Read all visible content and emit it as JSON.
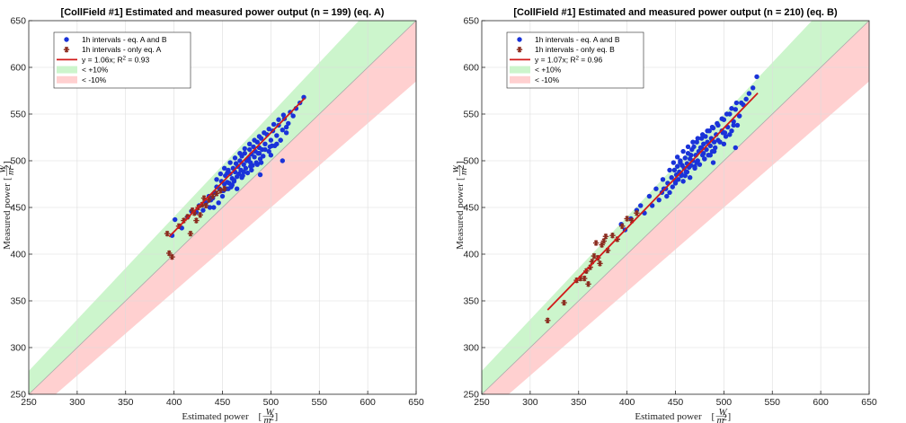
{
  "chart_data": [
    {
      "type": "scatter",
      "title": "[CollField #1] Estimated and measured power output (n = 199) (eq. A)",
      "xlabel": "Estimated power",
      "ylabel": "Measured power",
      "unit_num": "W",
      "unit_den": "m",
      "unit_exp": "2",
      "xlim": [
        250,
        650
      ],
      "ylim": [
        250,
        650
      ],
      "xticks": [
        250,
        300,
        350,
        400,
        450,
        500,
        550,
        600,
        650
      ],
      "yticks": [
        250,
        300,
        350,
        400,
        450,
        500,
        550,
        600,
        650
      ],
      "grid": true,
      "legend_position": "top-left",
      "band_upper_pct": 10,
      "band_lower_pct": -10,
      "colors": {
        "both": "#1a33d9",
        "only": "#8b2b1e",
        "fit": "#d11a1a",
        "band_upper": "#ccf5cc",
        "band_lower": "#ffd0d0",
        "identity": "#aaaaaa"
      },
      "legend": [
        {
          "key": "both",
          "marker": "dot",
          "label_parts": [
            "1h intervals - eq. A and B"
          ]
        },
        {
          "key": "only",
          "marker": "star",
          "label_parts": [
            "1h intervals - only eq. A"
          ]
        },
        {
          "key": "fit",
          "marker": "line",
          "label_parts": [
            "y = 1.06x; R",
            "2",
            " = 0.93"
          ]
        },
        {
          "key": "band_upper",
          "marker": "patch",
          "label_parts": [
            "< +10%"
          ]
        },
        {
          "key": "band_lower",
          "marker": "patch",
          "label_parts": [
            "< -10%"
          ]
        }
      ],
      "fit": {
        "slope": 1.06,
        "x_range": [
          395,
          535
        ]
      },
      "series": [
        {
          "key": "both",
          "x": [
            398,
            401,
            408,
            414,
            418,
            423,
            426,
            430,
            433,
            436,
            437,
            440,
            442,
            444,
            446,
            447,
            449,
            450,
            451,
            452,
            453,
            454,
            455,
            456,
            457,
            458,
            459,
            460,
            461,
            462,
            463,
            464,
            465,
            466,
            467,
            468,
            469,
            470,
            471,
            472,
            473,
            474,
            475,
            476,
            477,
            478,
            479,
            480,
            481,
            482,
            483,
            484,
            485,
            486,
            487,
            488,
            489,
            490,
            491,
            492,
            494,
            496,
            498,
            500,
            502,
            504,
            506,
            508,
            510,
            512,
            514,
            516,
            518,
            520,
            523,
            526,
            530,
            534,
            448,
            452,
            458,
            463,
            468,
            473,
            478,
            483,
            488,
            493,
            498,
            503,
            508,
            513,
            444,
            455,
            466,
            477,
            488,
            499,
            510,
            460,
            470,
            480,
            490,
            500,
            450,
            472,
            494,
            516,
            438,
            462,
            486,
            506,
            441,
            465,
            489,
            512,
            456,
            479,
            501
          ],
          "y": [
            420,
            437,
            428,
            440,
            446,
            445,
            452,
            447,
            455,
            462,
            450,
            460,
            466,
            472,
            455,
            470,
            478,
            462,
            468,
            475,
            484,
            470,
            477,
            490,
            476,
            486,
            472,
            481,
            492,
            479,
            488,
            497,
            483,
            494,
            486,
            500,
            490,
            505,
            484,
            496,
            508,
            492,
            500,
            487,
            503,
            512,
            498,
            507,
            495,
            515,
            504,
            510,
            498,
            520,
            508,
            514,
            502,
            524,
            512,
            505,
            518,
            528,
            510,
            522,
            532,
            516,
            527,
            538,
            522,
            533,
            545,
            530,
            540,
            552,
            548,
            556,
            562,
            568,
            486,
            492,
            498,
            503,
            508,
            513,
            518,
            522,
            526,
            530,
            534,
            539,
            544,
            549,
            480,
            487,
            494,
            501,
            508,
            515,
            522,
            474,
            482,
            490,
            498,
            506,
            468,
            488,
            512,
            536,
            458,
            478,
            496,
            518,
            450,
            470,
            485,
            500,
            470,
            494,
            516
          ]
        },
        {
          "key": "only",
          "x": [
            393,
            395,
            398,
            405,
            410,
            414,
            417,
            419,
            421,
            423,
            425,
            427,
            429,
            431,
            433,
            436,
            440,
            444,
            448,
            452
          ],
          "y": [
            422,
            401,
            397,
            430,
            436,
            440,
            422,
            447,
            444,
            436,
            450,
            442,
            453,
            460,
            452,
            458,
            462,
            465,
            468,
            470
          ]
        }
      ]
    },
    {
      "type": "scatter",
      "title": "[CollField #1] Estimated and measured power output (n = 210) (eq. B)",
      "xlabel": "Estimated power",
      "ylabel": "Measured power",
      "unit_num": "W",
      "unit_den": "m",
      "unit_exp": "2",
      "xlim": [
        250,
        650
      ],
      "ylim": [
        250,
        650
      ],
      "xticks": [
        250,
        300,
        350,
        400,
        450,
        500,
        550,
        600,
        650
      ],
      "yticks": [
        250,
        300,
        350,
        400,
        450,
        500,
        550,
        600,
        650
      ],
      "grid": true,
      "legend_position": "top-left",
      "band_upper_pct": 10,
      "band_lower_pct": -10,
      "colors": {
        "both": "#1a33d9",
        "only": "#8b2b1e",
        "fit": "#d11a1a",
        "band_upper": "#ccf5cc",
        "band_lower": "#ffd0d0",
        "identity": "#aaaaaa"
      },
      "legend": [
        {
          "key": "both",
          "marker": "dot",
          "label_parts": [
            "1h intervals - eq. A and B"
          ]
        },
        {
          "key": "only",
          "marker": "star",
          "label_parts": [
            "1h intervals - only eq. B"
          ]
        },
        {
          "key": "fit",
          "marker": "line",
          "label_parts": [
            "y = 1.07x; R",
            "2",
            " = 0.96"
          ]
        },
        {
          "key": "band_upper",
          "marker": "patch",
          "label_parts": [
            "< +10%"
          ]
        },
        {
          "key": "band_lower",
          "marker": "patch",
          "label_parts": [
            "< -10%"
          ]
        }
      ],
      "fit": {
        "slope": 1.07,
        "x_range": [
          318,
          535
        ]
      },
      "series": [
        {
          "key": "both",
          "x": [
            394,
            398,
            404,
            410,
            414,
            418,
            423,
            426,
            430,
            433,
            436,
            437,
            440,
            442,
            444,
            446,
            447,
            449,
            450,
            451,
            452,
            453,
            454,
            455,
            456,
            457,
            458,
            459,
            460,
            461,
            462,
            463,
            464,
            465,
            466,
            467,
            468,
            469,
            470,
            471,
            472,
            473,
            474,
            475,
            476,
            477,
            478,
            479,
            480,
            481,
            482,
            483,
            484,
            485,
            486,
            487,
            488,
            489,
            490,
            491,
            492,
            494,
            496,
            498,
            500,
            502,
            504,
            506,
            508,
            510,
            512,
            514,
            516,
            518,
            520,
            523,
            526,
            530,
            534,
            448,
            452,
            458,
            463,
            468,
            473,
            478,
            483,
            488,
            493,
            498,
            503,
            508,
            513,
            444,
            455,
            466,
            477,
            488,
            499,
            510,
            460,
            470,
            480,
            490,
            500,
            450,
            472,
            494,
            516,
            438,
            462,
            486,
            506,
            441,
            465,
            489,
            512,
            456,
            479,
            501
          ],
          "y": [
            432,
            426,
            438,
            447,
            452,
            444,
            462,
            452,
            470,
            458,
            466,
            480,
            470,
            476,
            466,
            482,
            472,
            490,
            476,
            485,
            494,
            480,
            488,
            500,
            486,
            495,
            478,
            492,
            503,
            488,
            497,
            508,
            493,
            502,
            495,
            512,
            500,
            515,
            494,
            506,
            520,
            500,
            510,
            496,
            514,
            524,
            506,
            518,
            502,
            526,
            512,
            520,
            506,
            532,
            516,
            524,
            510,
            535,
            520,
            514,
            528,
            538,
            520,
            532,
            544,
            526,
            536,
            550,
            532,
            542,
            555,
            538,
            548,
            562,
            560,
            566,
            572,
            578,
            590,
            498,
            504,
            510,
            515,
            520,
            524,
            528,
            532,
            536,
            540,
            545,
            550,
            556,
            562,
            490,
            498,
            506,
            514,
            522,
            530,
            538,
            484,
            492,
            502,
            510,
            518,
            478,
            498,
            522,
            548,
            470,
            488,
            506,
            528,
            462,
            482,
            498,
            514,
            484,
            508,
            530
          ]
        },
        {
          "key": "only",
          "x": [
            318,
            335,
            348,
            352,
            356,
            358,
            360,
            362,
            364,
            366,
            368,
            370,
            372,
            374,
            376,
            378,
            380,
            385,
            390,
            395,
            400,
            405,
            410
          ],
          "y": [
            329,
            348,
            372,
            374,
            374,
            382,
            368,
            386,
            392,
            398,
            412,
            396,
            390,
            410,
            414,
            419,
            404,
            420,
            416,
            430,
            438,
            436,
            444
          ]
        }
      ]
    }
  ]
}
